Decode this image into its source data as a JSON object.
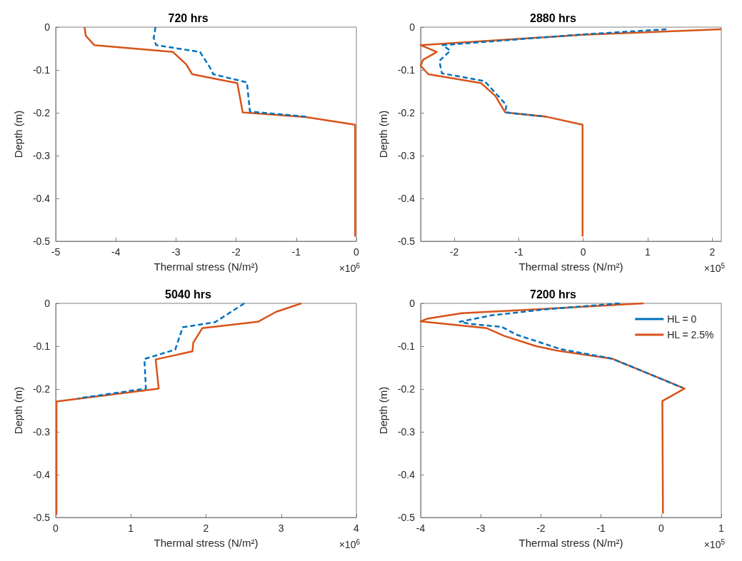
{
  "chart_data": [
    {
      "type": "line",
      "title": "720 hrs",
      "xlabel": "Thermal stress (N/m²)",
      "ylabel": "Depth (m)",
      "annotations": [
        "×10$^{6}$"
      ],
      "xlim": [
        -5,
        0
      ],
      "ylim": [
        -0.5,
        0
      ],
      "xticks": [
        -5,
        -4,
        -3,
        -2,
        -1,
        0
      ],
      "yticks": [
        -0.5,
        -0.4,
        -0.3,
        -0.2,
        -0.1,
        0
      ],
      "grid": false,
      "legend": false,
      "series": [
        {
          "color": "#0072bd",
          "line_style": "dashed",
          "x": [
            -3.34,
            -3.37,
            -3.33,
            -2.6,
            -2.44,
            -2.38,
            -1.82,
            -1.77,
            -0.84
          ],
          "values": [
            0,
            -0.025,
            -0.042,
            -0.058,
            -0.093,
            -0.11,
            -0.129,
            -0.197,
            -0.209
          ]
        },
        {
          "color": "#d95319",
          "line_style": "solid",
          "x": [
            -4.52,
            -4.5,
            -4.36,
            -3.05,
            -2.83,
            -2.73,
            -1.98,
            -1.89,
            -0.84,
            -0.02,
            -0.02
          ],
          "values": [
            0,
            -0.02,
            -0.042,
            -0.058,
            -0.087,
            -0.11,
            -0.131,
            -0.199,
            -0.21,
            -0.228,
            -0.489
          ]
        }
      ]
    },
    {
      "type": "line",
      "title": "2880 hrs",
      "xlabel": "Thermal stress (N/m²)",
      "ylabel": "Depth (m)",
      "annotations": [
        "×10$^{5}$"
      ],
      "xlim": [
        -2.52,
        2.14
      ],
      "ylim": [
        -0.5,
        0
      ],
      "xticks": [
        -2,
        -1,
        0,
        1,
        2
      ],
      "yticks": [
        -0.5,
        -0.4,
        -0.3,
        -0.2,
        -0.1,
        0
      ],
      "grid": false,
      "legend": false,
      "series": [
        {
          "color": "#0072bd",
          "line_style": "dashed",
          "x": [
            1.29,
            -0.01,
            -2.18,
            -2.06,
            -2.23,
            -2.19,
            -1.53,
            -1.19,
            -1.21,
            -0.58
          ],
          "values": [
            -0.005,
            -0.017,
            -0.042,
            -0.055,
            -0.079,
            -0.108,
            -0.126,
            -0.182,
            -0.199,
            -0.209
          ]
        },
        {
          "color": "#d95319",
          "line_style": "solid",
          "x": [
            2.14,
            -0.01,
            -2.52,
            -2.27,
            -2.48,
            -2.52,
            -2.4,
            -1.58,
            -1.36,
            -1.21,
            -0.58,
            -0.01,
            -0.01
          ],
          "values": [
            -0.005,
            -0.018,
            -0.042,
            -0.058,
            -0.076,
            -0.09,
            -0.11,
            -0.131,
            -0.161,
            -0.199,
            -0.209,
            -0.228,
            -0.489
          ]
        }
      ]
    },
    {
      "type": "line",
      "title": "5040 hrs",
      "xlabel": "Thermal stress (N/m²)",
      "ylabel": "Depth (m)",
      "annotations": [
        "×10$^{6}$"
      ],
      "xlim": [
        0,
        4
      ],
      "ylim": [
        -0.5,
        0
      ],
      "xticks": [
        0,
        1,
        2,
        3,
        4
      ],
      "yticks": [
        -0.5,
        -0.4,
        -0.3,
        -0.2,
        -0.1,
        0
      ],
      "grid": false,
      "legend": false,
      "series": [
        {
          "color": "#0072bd",
          "line_style": "dashed",
          "x": [
            2.51,
            2.12,
            1.69,
            1.59,
            1.18,
            1.2,
            0.3
          ],
          "values": [
            0,
            -0.044,
            -0.056,
            -0.108,
            -0.13,
            -0.199,
            -0.222
          ]
        },
        {
          "color": "#d95319",
          "line_style": "solid",
          "x": [
            3.27,
            2.93,
            2.69,
            1.95,
            1.83,
            1.82,
            1.33,
            1.37,
            0.01,
            0.01
          ],
          "values": [
            0,
            -0.02,
            -0.043,
            -0.058,
            -0.092,
            -0.112,
            -0.131,
            -0.199,
            -0.229,
            -0.494
          ]
        }
      ]
    },
    {
      "type": "line",
      "title": "7200 hrs",
      "xlabel": "Thermal stress (N/m²)",
      "ylabel": "Depth (m)",
      "annotations": [
        "×10$^{5}$"
      ],
      "xlim": [
        -4,
        1
      ],
      "ylim": [
        -0.5,
        0
      ],
      "xticks": [
        -4,
        -3,
        -2,
        -1,
        0,
        1
      ],
      "yticks": [
        -0.5,
        -0.4,
        -0.3,
        -0.2,
        -0.1,
        0
      ],
      "grid": false,
      "legend": "top right",
      "series": [
        {
          "name": "HL = 0",
          "color": "#0072bd",
          "line_style": "dashed",
          "x": [
            -0.69,
            -1.92,
            -2.82,
            -3.35,
            -3.18,
            -2.65,
            -2.41,
            -1.67,
            -0.82,
            -0.04,
            0.35
          ],
          "values": [
            0,
            -0.014,
            -0.028,
            -0.043,
            -0.048,
            -0.055,
            -0.073,
            -0.107,
            -0.129,
            -0.174,
            -0.197
          ]
        },
        {
          "name": "HL = 2.5%",
          "color": "#d95319",
          "line_style": "solid",
          "x": [
            -0.29,
            -1.67,
            -3.31,
            -3.89,
            -4.0,
            -2.9,
            -2.61,
            -2.08,
            -1.71,
            -0.82,
            -0.04,
            0.39,
            0.02,
            0.03
          ],
          "values": [
            0,
            -0.011,
            -0.023,
            -0.036,
            -0.042,
            -0.058,
            -0.076,
            -0.1,
            -0.111,
            -0.129,
            -0.174,
            -0.199,
            -0.228,
            -0.491
          ]
        }
      ]
    }
  ]
}
